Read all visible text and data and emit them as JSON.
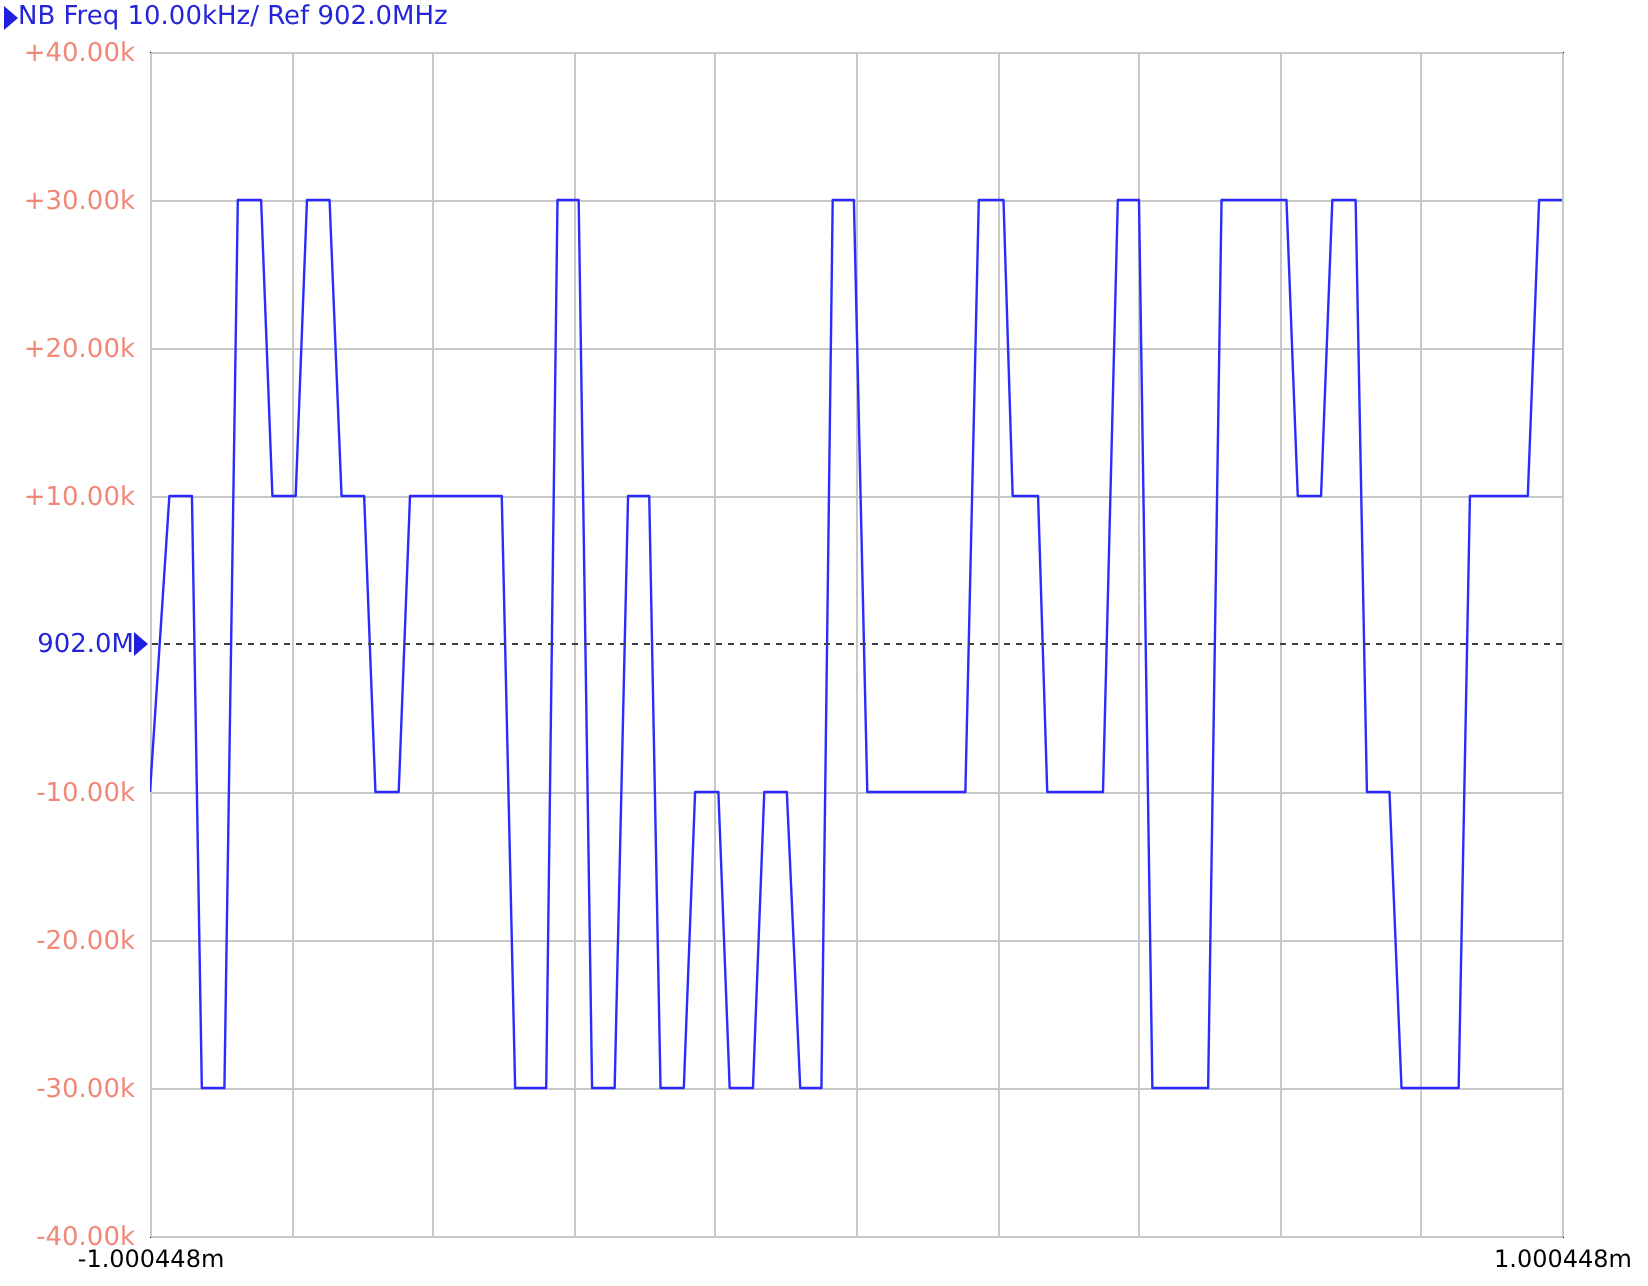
{
  "chart_data": {
    "type": "line",
    "title": "NB Freq 10.00kHz/ Ref 902.0MHz",
    "x": [
      -1.000448,
      -0.973,
      -0.941,
      -0.927,
      -0.895,
      -0.876,
      -0.843,
      -0.827,
      -0.794,
      -0.778,
      -0.746,
      -0.729,
      -0.697,
      -0.681,
      -0.648,
      -0.632,
      -0.502,
      -0.483,
      -0.439,
      -0.423,
      -0.393,
      -0.374,
      -0.342,
      -0.323,
      -0.293,
      -0.277,
      -0.244,
      -0.228,
      -0.195,
      -0.179,
      -0.146,
      -0.13,
      -0.098,
      -0.079,
      -0.049,
      -0.033,
      -0.003,
      0.016,
      0.155,
      0.174,
      0.209,
      0.222,
      0.258,
      0.271,
      0.35,
      0.371,
      0.401,
      0.42,
      0.499,
      0.518,
      0.61,
      0.626,
      0.659,
      0.675,
      0.708,
      0.724,
      0.756,
      0.773,
      0.854,
      0.87,
      0.952,
      0.968,
      1.000448
    ],
    "series": [
      {
        "color": "#2b2bff",
        "values": [
          -10,
          10,
          10,
          -30,
          -30,
          30,
          30,
          10,
          10,
          30,
          30,
          10,
          10,
          -10,
          -10,
          10,
          10,
          -30,
          -30,
          30,
          30,
          -30,
          -30,
          10,
          10,
          -30,
          -30,
          -10,
          -10,
          -30,
          -30,
          -10,
          -10,
          -30,
          -30,
          30,
          30,
          -10,
          -10,
          30,
          30,
          10,
          10,
          -10,
          -10,
          30,
          30,
          -30,
          -30,
          30,
          30,
          10,
          10,
          30,
          30,
          -10,
          -10,
          -30,
          -30,
          10,
          10,
          30,
          30
        ]
      }
    ],
    "xlim": [
      -1.000448,
      1.000448
    ],
    "xticks": [
      {
        "value": -1.000448,
        "label": "-1.000448m"
      },
      {
        "value": -0.8003584,
        "label": null
      },
      {
        "value": -0.6002688,
        "label": null
      },
      {
        "value": -0.4001792,
        "label": null
      },
      {
        "value": -0.2000896,
        "label": null
      },
      {
        "value": 0,
        "label": null
      },
      {
        "value": 0.2000896,
        "label": null
      },
      {
        "value": 0.4001792,
        "label": null
      },
      {
        "value": 0.6002688,
        "label": null
      },
      {
        "value": 0.8003584,
        "label": null
      },
      {
        "value": 1.000448,
        "label": "1.000448m"
      }
    ],
    "ylim": [
      -40,
      40
    ],
    "yticks": [
      {
        "value": 40,
        "label": "+40.00k"
      },
      {
        "value": 30,
        "label": "+30.00k"
      },
      {
        "value": 20,
        "label": "+20.00k"
      },
      {
        "value": 10,
        "label": "+10.00k"
      },
      {
        "value": -10,
        "label": "-10.00k"
      },
      {
        "value": -20,
        "label": "-20.00k"
      },
      {
        "value": -30,
        "label": "-30.00k"
      },
      {
        "value": -40,
        "label": "-40.00k"
      }
    ],
    "grid": true,
    "ref_lines": [
      {
        "axis": "y",
        "value": 0,
        "label": "902.0M",
        "color": "#404040",
        "line_style": "dashed"
      }
    ]
  }
}
